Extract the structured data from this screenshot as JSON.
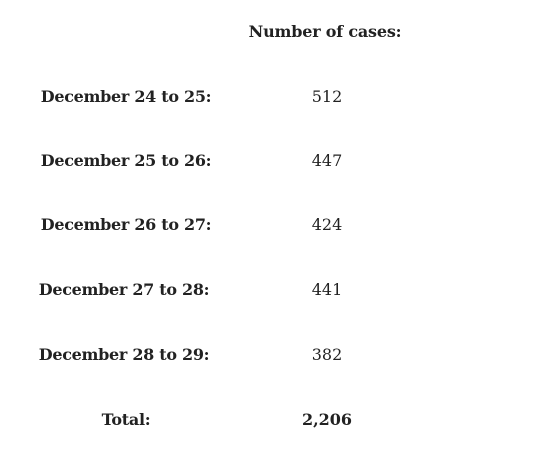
{
  "table": {
    "header": "Number of cases:",
    "rows": [
      {
        "label": "December 24 to 25:",
        "value": "512"
      },
      {
        "label": "December 25 to 26:",
        "value": "447"
      },
      {
        "label": "December 26 to 27:",
        "value": "424"
      },
      {
        "label": "December 27 to 28:",
        "value": "441"
      },
      {
        "label": "December 28 to 29:",
        "value": "382"
      }
    ],
    "total": {
      "label": "Total:",
      "value": "2,206"
    }
  }
}
